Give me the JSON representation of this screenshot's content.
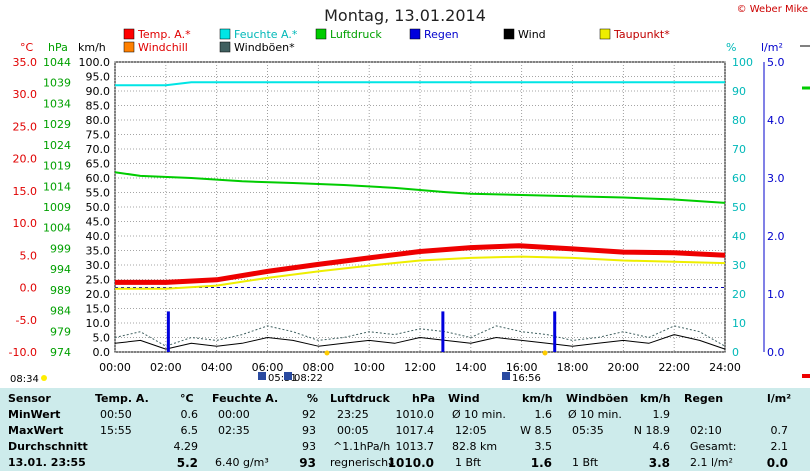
{
  "title": "Montag, 13.01.2014",
  "credit": "© Weber Mike",
  "chart_data": {
    "type": "line",
    "x_ticks": [
      "00:00",
      "02:00",
      "04:00",
      "06:00",
      "08:00",
      "10:00",
      "12:00",
      "14:00",
      "16:00",
      "18:00",
      "20:00",
      "22:00",
      "24:00"
    ],
    "axes": {
      "temp_c": {
        "label": "°C",
        "ticks": [
          "35.0",
          "30.0",
          "25.0",
          "20.0",
          "15.0",
          "10.0",
          "5.0",
          "0.0",
          "-5.0",
          "-10.0"
        ],
        "range": [
          -10,
          35
        ]
      },
      "hpa": {
        "label": "hPa",
        "ticks": [
          "1044",
          "1039",
          "1034",
          "1029",
          "1024",
          "1019",
          "1014",
          "1009",
          "1004",
          "999",
          "994",
          "989",
          "984",
          "979",
          "974"
        ],
        "range": [
          974,
          1044
        ]
      },
      "kmh": {
        "label": "km/h",
        "ticks": [
          "100.0",
          "95.0",
          "90.0",
          "85.0",
          "80.0",
          "75.0",
          "70.0",
          "65.0",
          "60.0",
          "55.0",
          "50.0",
          "45.0",
          "40.0",
          "35.0",
          "30.0",
          "25.0",
          "20.0",
          "15.0",
          "10.0",
          "5.0",
          "0.0"
        ],
        "range": [
          0,
          100
        ]
      },
      "pct": {
        "label": "%",
        "ticks": [
          "100",
          "90",
          "80",
          "70",
          "60",
          "50",
          "40",
          "30",
          "20",
          "10",
          "0"
        ],
        "range": [
          0,
          100
        ]
      },
      "rain": {
        "label": "l/m²",
        "ticks": [
          "5.0",
          "4.0",
          "3.0",
          "2.0",
          "1.0",
          "0.0"
        ],
        "range": [
          0,
          5
        ]
      }
    },
    "legend": [
      {
        "name": "Temp. A.*",
        "color": "#ff0000"
      },
      {
        "name": "Feuchte A.*",
        "color": "#00e5e5"
      },
      {
        "name": "Luftdruck",
        "color": "#00cc00"
      },
      {
        "name": "Regen",
        "color": "#0000dd"
      },
      {
        "name": "Wind",
        "color": "#000000"
      },
      {
        "name": "Taupunkt*",
        "color": "#eeee00"
      },
      {
        "name": "Windchill",
        "color": "#ff8000"
      },
      {
        "name": "Windböen*",
        "color": "#406060"
      }
    ],
    "series": [
      {
        "name": "Temp. A.*",
        "axis": "temp_c",
        "x": [
          0,
          2,
          4,
          6,
          8,
          10,
          12,
          14,
          15.9,
          18,
          20,
          22,
          24
        ],
        "values": [
          0.8,
          0.8,
          1.2,
          2.5,
          3.6,
          4.6,
          5.6,
          6.2,
          6.5,
          6.0,
          5.5,
          5.4,
          5.0
        ]
      },
      {
        "name": "Taupunkt*",
        "axis": "temp_c",
        "x": [
          0,
          2,
          4,
          6,
          8,
          10,
          12,
          14,
          16,
          18,
          20,
          22,
          24
        ],
        "values": [
          -0.2,
          -0.2,
          0.3,
          1.5,
          2.5,
          3.4,
          4.2,
          4.6,
          4.8,
          4.6,
          4.2,
          4.0,
          3.8
        ]
      },
      {
        "name": "Feuchte A.*",
        "axis": "pct",
        "x": [
          0,
          2,
          3,
          4,
          6,
          8,
          10,
          12,
          14,
          16,
          18,
          20,
          22,
          24
        ],
        "values": [
          92,
          92,
          93,
          93,
          93,
          93,
          93,
          93,
          93,
          93,
          93,
          93,
          93,
          93
        ]
      },
      {
        "name": "Luftdruck",
        "axis": "hpa",
        "x": [
          0,
          1,
          3,
          5,
          7,
          9,
          11,
          13,
          14,
          16,
          18,
          20,
          22,
          24
        ],
        "values": [
          1017.4,
          1016.5,
          1016.0,
          1015.2,
          1014.8,
          1014.3,
          1013.6,
          1012.6,
          1012.2,
          1011.9,
          1011.6,
          1011.3,
          1010.8,
          1010.0
        ]
      },
      {
        "name": "Wind",
        "axis": "kmh",
        "x": [
          0,
          1,
          2,
          3,
          4,
          5,
          6,
          7,
          8,
          9,
          10,
          11,
          12,
          13,
          14,
          15,
          16,
          17,
          18,
          19,
          20,
          21,
          22,
          23,
          24
        ],
        "values": [
          3,
          4,
          1,
          3,
          2,
          3,
          5,
          4,
          2,
          3,
          4,
          3,
          5,
          4,
          3,
          5,
          4,
          3,
          2,
          3,
          4,
          3,
          6,
          4,
          1
        ]
      },
      {
        "name": "Windböen*",
        "axis": "kmh",
        "x": [
          0,
          1,
          2,
          3,
          4,
          5,
          6,
          7,
          8,
          9,
          10,
          11,
          12,
          13,
          14,
          15,
          16,
          17,
          18,
          19,
          20,
          21,
          22,
          23,
          24
        ],
        "values": [
          5,
          7,
          2,
          5,
          4,
          6,
          9,
          7,
          4,
          5,
          7,
          6,
          8,
          7,
          5,
          9,
          7,
          6,
          4,
          5,
          7,
          5,
          9,
          7,
          2
        ]
      },
      {
        "name": "Regen",
        "axis": "rain",
        "type": "bar",
        "x": [
          2.1,
          12.9,
          17.3
        ],
        "values": [
          0.7,
          0.7,
          0.7
        ]
      }
    ],
    "x_markers": [
      "05:51",
      "08:22",
      "16:56"
    ],
    "left_marker": "08:34",
    "ref_line": {
      "axis": "temp_c",
      "value": 0.0,
      "color": "#0000aa"
    }
  },
  "table": {
    "headers": {
      "sensor": "Sensor",
      "temp": "Temp. A.",
      "temp_unit": "°C",
      "hum": "Feuchte A.",
      "hum_unit": "%",
      "press": "Luftdruck",
      "press_unit": "hPa",
      "wind": "Wind",
      "wind_unit": "km/h",
      "gust": "Windböen",
      "gust_unit": "km/h",
      "rain": "Regen",
      "rain_unit": "l/m²"
    },
    "rows": {
      "min": {
        "label": "MinWert",
        "temp_time": "00:50",
        "temp": "0.6",
        "hum_time": "00:00",
        "hum": "92",
        "press_time": "23:25",
        "press": "1010.0",
        "wind_time": "Ø 10 min.",
        "wind": "1.6",
        "gust_time": "Ø 10 min.",
        "gust": "1.9",
        "rain_time": "",
        "rain": ""
      },
      "max": {
        "label": "MaxWert",
        "temp_time": "15:55",
        "temp": "6.5",
        "hum_time": "02:35",
        "hum": "93",
        "press_time": "00:05",
        "press": "1017.4",
        "wind_time": "12:05",
        "wind": "W 8.5",
        "gust_time": "05:35",
        "gust": "N 18.9",
        "rain_time": "02:10",
        "rain": "0.7"
      },
      "avg": {
        "label": "Durchschnitt",
        "temp": "4.29",
        "hum": "93",
        "press_time": "^1.1hPa/h",
        "press": "1013.7",
        "wind_time": "82.8 km",
        "wind": "3.5",
        "gust": "4.6",
        "rain_time": "Gesamt:",
        "rain": "2.1"
      },
      "current": {
        "label": "13.01. 23:55",
        "temp": "5.2",
        "hum_time": "6.40 g/m³",
        "hum": "93",
        "press_time": "regnerisch",
        "press_arrow": "↓",
        "press": "1010.0",
        "wind_time": "1 Bft",
        "wind": "1.6",
        "gust_time": "1 Bft",
        "gust": "3.8",
        "rain_time": "2.1 l/m²",
        "rain": "0.0"
      }
    }
  }
}
